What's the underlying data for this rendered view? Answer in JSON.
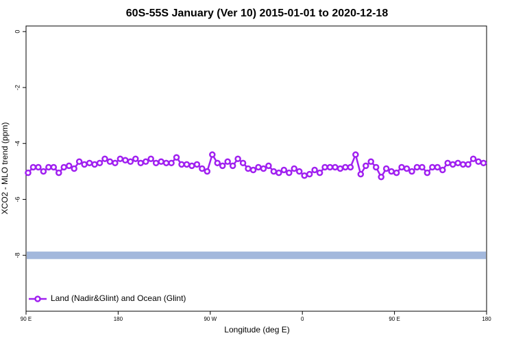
{
  "chart_data": {
    "type": "line",
    "title": "60S-55S January (Ver 10)   2015-01-01 to 2020-12-18",
    "xlabel": "Longitude (deg E)",
    "ylabel": "XCO2 - MLO trend (ppm)",
    "xlim": [
      90,
      540
    ],
    "xticks": [
      {
        "value": 90,
        "label": "90 E"
      },
      {
        "value": 180,
        "label": "180"
      },
      {
        "value": 270,
        "label": "90 W"
      },
      {
        "value": 360,
        "label": "0"
      },
      {
        "value": 450,
        "label": "90 E"
      },
      {
        "value": 540,
        "label": "180"
      }
    ],
    "ylim": [
      -10,
      0.2
    ],
    "yticks": [
      0,
      -2,
      -4,
      -6,
      -8
    ],
    "hline": {
      "value": -8,
      "color": "#a3b8dc"
    },
    "legend": "bottom-left",
    "x": [
      92,
      97,
      102,
      107,
      112,
      117,
      122,
      127,
      132,
      137,
      142,
      147,
      152,
      157,
      162,
      167,
      172,
      177,
      182,
      187,
      192,
      197,
      202,
      207,
      212,
      217,
      222,
      227,
      232,
      237,
      242,
      247,
      252,
      257,
      262,
      267,
      272,
      277,
      282,
      287,
      292,
      297,
      302,
      307,
      312,
      317,
      322,
      327,
      332,
      337,
      342,
      347,
      352,
      357,
      362,
      367,
      372,
      377,
      382,
      387,
      392,
      397,
      402,
      407,
      412,
      417,
      422,
      427,
      432,
      437,
      442,
      447,
      452,
      457,
      462,
      467,
      472,
      477,
      482,
      487,
      492,
      497,
      502,
      507,
      512,
      517,
      522,
      527,
      532,
      537
    ],
    "series": [
      {
        "name": "Land (Nadir&Glint) and Ocean (Glint)",
        "color": "#a020f0",
        "values": [
          -5.05,
          -4.85,
          -4.85,
          -5.0,
          -4.85,
          -4.85,
          -5.05,
          -4.85,
          -4.8,
          -4.9,
          -4.65,
          -4.75,
          -4.7,
          -4.75,
          -4.7,
          -4.55,
          -4.65,
          -4.7,
          -4.55,
          -4.6,
          -4.65,
          -4.55,
          -4.7,
          -4.65,
          -4.55,
          -4.7,
          -4.65,
          -4.7,
          -4.7,
          -4.5,
          -4.75,
          -4.75,
          -4.8,
          -4.75,
          -4.9,
          -5.0,
          -4.4,
          -4.7,
          -4.8,
          -4.65,
          -4.8,
          -4.55,
          -4.7,
          -4.9,
          -4.95,
          -4.85,
          -4.9,
          -4.8,
          -5.0,
          -5.05,
          -4.95,
          -5.05,
          -4.9,
          -5.0,
          -5.15,
          -5.1,
          -4.95,
          -5.05,
          -4.85,
          -4.85,
          -4.85,
          -4.9,
          -4.85,
          -4.85,
          -4.4,
          -5.1,
          -4.8,
          -4.65,
          -4.85,
          -5.2,
          -4.9,
          -5.0,
          -5.05,
          -4.85,
          -4.9,
          -5.0,
          -4.85,
          -4.85,
          -5.05,
          -4.85,
          -4.85,
          -4.95,
          -4.7,
          -4.75,
          -4.7,
          -4.75,
          -4.75,
          -4.55,
          -4.65,
          -4.7
        ]
      }
    ]
  }
}
